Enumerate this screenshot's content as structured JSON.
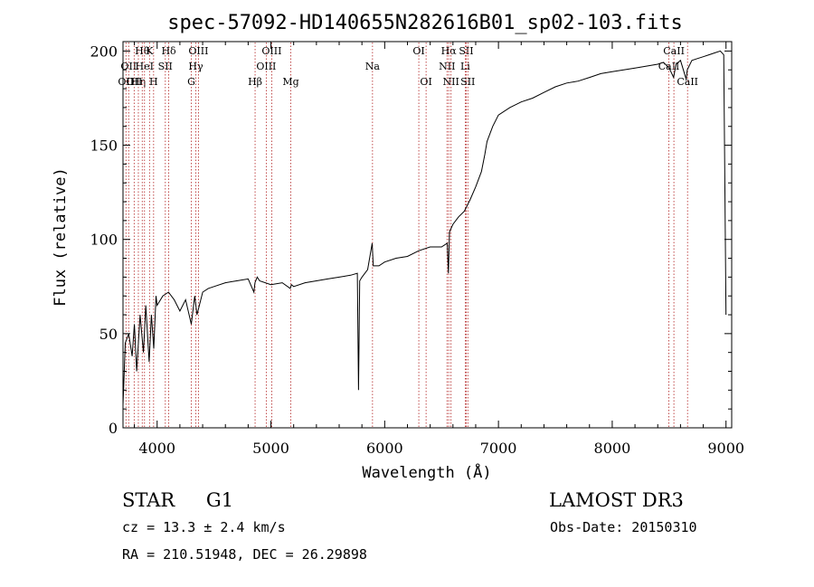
{
  "chart_data": {
    "type": "line",
    "title": "spec-57092-HD140655N282616B01_sp02-103.fits",
    "xlabel": "Wavelength (Å)",
    "ylabel": "Flux (relative)",
    "xlim": [
      3700,
      9050
    ],
    "ylim": [
      0,
      205
    ],
    "x_ticks": [
      4000,
      5000,
      6000,
      7000,
      8000,
      9000
    ],
    "y_ticks": [
      0,
      50,
      100,
      150,
      200
    ],
    "grid": false,
    "series": [
      {
        "x": [
          3700,
          3720,
          3750,
          3780,
          3800,
          3820,
          3850,
          3880,
          3900,
          3930,
          3950,
          3970,
          3990,
          4000,
          4050,
          4100,
          4150,
          4200,
          4250,
          4300,
          4330,
          4350,
          4400,
          4450,
          4500,
          4600,
          4700,
          4800,
          4850,
          4860,
          4880,
          4900,
          5000,
          5100,
          5170,
          5180,
          5200,
          5300,
          5400,
          5500,
          5600,
          5700,
          5760,
          5770,
          5780,
          5800,
          5850,
          5890,
          5900,
          5950,
          6000,
          6100,
          6200,
          6300,
          6400,
          6500,
          6550,
          6560,
          6570,
          6600,
          6650,
          6700,
          6750,
          6800,
          6850,
          6880,
          6900,
          6950,
          7000,
          7100,
          7200,
          7300,
          7400,
          7500,
          7600,
          7700,
          7800,
          7900,
          8000,
          8100,
          8200,
          8300,
          8400,
          8450,
          8500,
          8540,
          8560,
          8600,
          8650,
          8660,
          8700,
          8750,
          8800,
          8850,
          8900,
          8950,
          8980,
          9000
        ],
        "y": [
          12,
          45,
          50,
          38,
          55,
          30,
          60,
          40,
          65,
          35,
          60,
          42,
          70,
          65,
          70,
          72,
          68,
          62,
          68,
          55,
          70,
          60,
          72,
          74,
          75,
          77,
          78,
          79,
          72,
          77,
          80,
          78,
          76,
          77,
          74,
          76,
          75,
          77,
          78,
          79,
          80,
          81,
          82,
          20,
          78,
          80,
          84,
          98,
          86,
          86,
          88,
          90,
          91,
          94,
          96,
          96,
          98,
          82,
          104,
          108,
          112,
          115,
          121,
          128,
          136,
          145,
          152,
          160,
          166,
          170,
          173,
          175,
          178,
          181,
          183,
          184,
          186,
          188,
          189,
          190,
          191,
          192,
          193,
          194,
          191,
          186,
          193,
          195,
          185,
          190,
          195,
          196,
          197,
          198,
          199,
          200,
          198,
          60
        ]
      }
    ],
    "emission_lines": [
      {
        "wl": 3726,
        "row": 2,
        "label": "OII"
      },
      {
        "wl": 3750,
        "row": 1,
        "label": "OII"
      },
      {
        "wl": 3798,
        "row": 2,
        "label": "OII"
      },
      {
        "wl": 3835,
        "row": 2,
        "label": "Hη"
      },
      {
        "wl": 3869,
        "row": 0,
        "label": "Hθ"
      },
      {
        "wl": 3889,
        "row": 1,
        "label": "HeI"
      },
      {
        "wl": 3933,
        "row": 0,
        "label": "K"
      },
      {
        "wl": 3969,
        "row": 2,
        "label": "H"
      },
      {
        "wl": 4072,
        "row": 1,
        "label": "SII"
      },
      {
        "wl": 4102,
        "row": 0,
        "label": "Hδ"
      },
      {
        "wl": 4300,
        "row": 2,
        "label": "G"
      },
      {
        "wl": 4340,
        "row": 1,
        "label": "Hγ"
      },
      {
        "wl": 4363,
        "row": 0,
        "label": "OIII"
      },
      {
        "wl": 4861,
        "row": 2,
        "label": "Hβ"
      },
      {
        "wl": 4959,
        "row": 1,
        "label": "OIII"
      },
      {
        "wl": 5007,
        "row": 0,
        "label": "OIII"
      },
      {
        "wl": 5175,
        "row": 2,
        "label": "Mg"
      },
      {
        "wl": 5893,
        "row": 1,
        "label": "Na"
      },
      {
        "wl": 6300,
        "row": 0,
        "label": "OI"
      },
      {
        "wl": 6364,
        "row": 2,
        "label": "OI"
      },
      {
        "wl": 6548,
        "row": 1,
        "label": "NII"
      },
      {
        "wl": 6563,
        "row": 0,
        "label": "Hα"
      },
      {
        "wl": 6583,
        "row": 2,
        "label": "NII"
      },
      {
        "wl": 6708,
        "row": 1,
        "label": "Li"
      },
      {
        "wl": 6717,
        "row": 0,
        "label": "SII"
      },
      {
        "wl": 6731,
        "row": 2,
        "label": "SII"
      },
      {
        "wl": 8498,
        "row": 1,
        "label": "CaII"
      },
      {
        "wl": 8542,
        "row": 0,
        "label": "CaII"
      },
      {
        "wl": 8662,
        "row": 2,
        "label": "CaII"
      }
    ]
  },
  "info": {
    "class": "STAR",
    "subclass": "G1",
    "survey": "LAMOST DR3",
    "redshift": "cz = 13.3 ± 2.4 km/s",
    "obs_date": "Obs-Date: 20150310",
    "coords": "RA = 210.51948, DEC =  26.29898"
  }
}
